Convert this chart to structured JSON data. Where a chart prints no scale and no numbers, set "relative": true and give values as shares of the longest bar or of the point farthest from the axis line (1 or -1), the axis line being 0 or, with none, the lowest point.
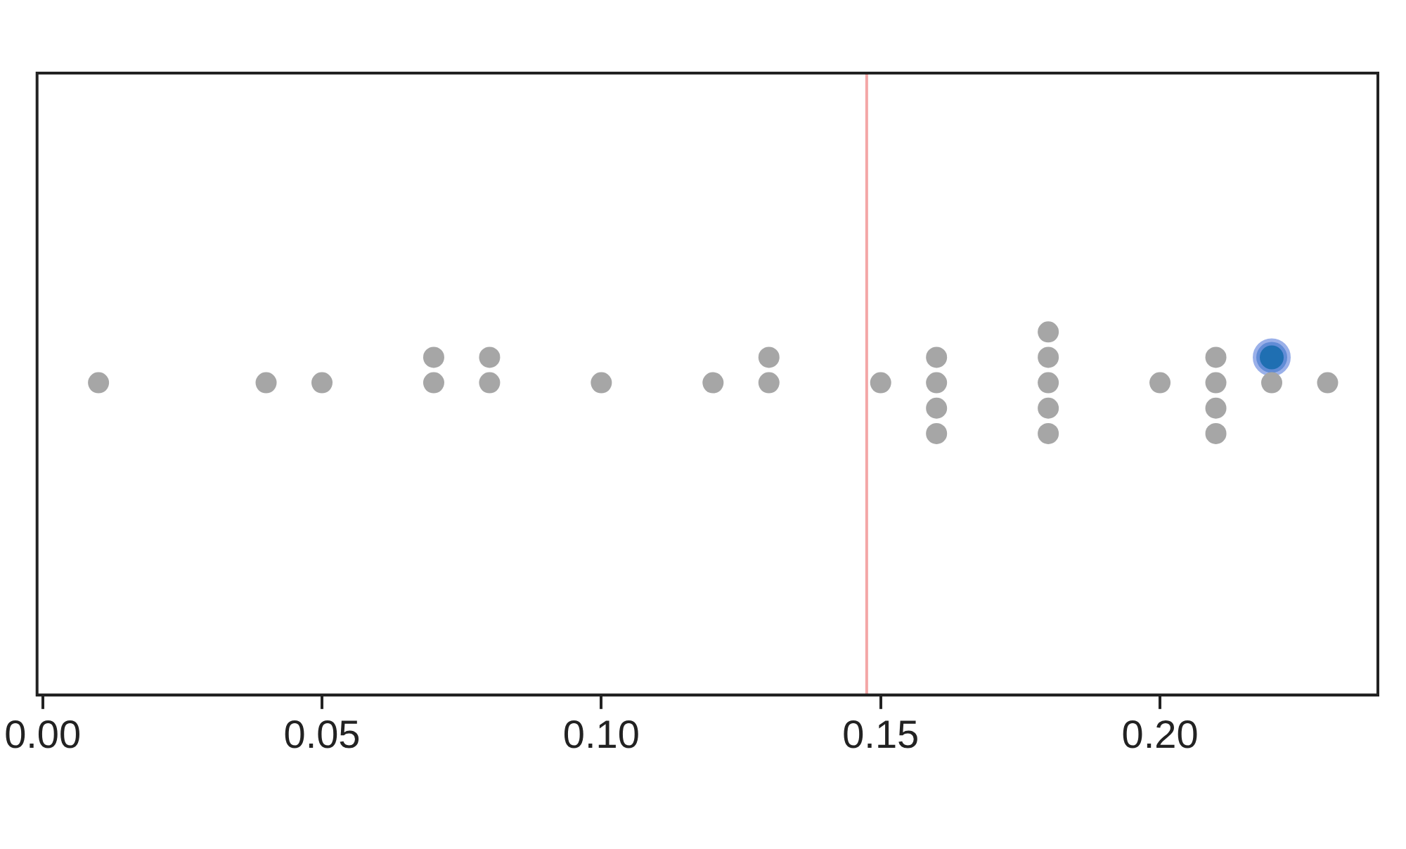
{
  "chart_data": {
    "type": "scatter",
    "relative": true,
    "marker": "circle",
    "legend": false,
    "grid": false,
    "tick_labels": "x",
    "xlim": [
      -0.001,
      0.239
    ],
    "xticks": [
      {
        "value": 0,
        "label": "0.00"
      },
      {
        "value": 0.05,
        "label": "0.05"
      },
      {
        "value": 0.1,
        "label": "0.10"
      },
      {
        "value": 0.15,
        "label": "0.15"
      },
      {
        "value": 0.2,
        "label": "0.20"
      }
    ],
    "series": [
      {
        "color": "#a6a6a6",
        "x": [
          0.01,
          0.04,
          0.05,
          0.07,
          0.08,
          0.1,
          0.12,
          0.13,
          0.15,
          0.16,
          0.18,
          0.2,
          0.21,
          0.22,
          0.23,
          0.07,
          0.08,
          0.13,
          0.16,
          0.18,
          0.21,
          0.18,
          0.16,
          0.18,
          0.21,
          0.16,
          0.18,
          0.21
        ],
        "values": [
          0.86,
          0.86,
          0.86,
          0.86,
          0.86,
          0.86,
          0.86,
          0.86,
          0.86,
          0.86,
          0.86,
          0.86,
          0.86,
          0.86,
          0.86,
          0.93,
          0.93,
          0.93,
          0.93,
          0.93,
          0.93,
          1,
          0.79,
          0.79,
          0.79,
          0.72,
          0.72,
          0.72
        ]
      },
      {
        "color": "#1f6fb2",
        "x": [
          0.22
        ],
        "values": [
          0.93
        ]
      }
    ],
    "ref_lines": [
      {
        "axis": "x",
        "value": 0.1475,
        "color": "#f4a6a6"
      }
    ]
  }
}
